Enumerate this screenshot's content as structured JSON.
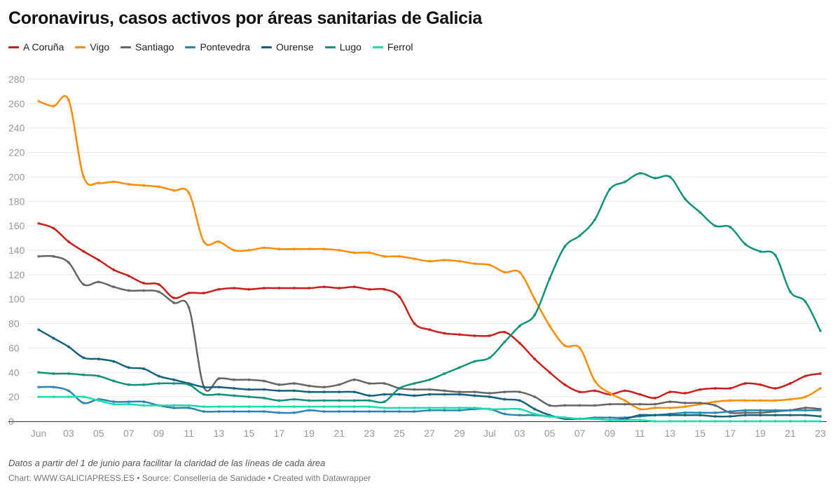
{
  "chart_data": {
    "type": "line",
    "title": "Coronavirus, casos activos por áreas sanitarias de Galicia",
    "note": "Datos a partir del 1 de junio para facilitar la claridad de las líneas de cada área",
    "credit": "Chart: WWW.GALICIAPRESS.ES • Source: Consellería de Sanidade • Created with Datawrapper",
    "x_start": "2020-06-01",
    "x_end": "2020-07-23",
    "x_tick_labels": [
      "Jun",
      "03",
      "05",
      "07",
      "09",
      "11",
      "13",
      "15",
      "17",
      "19",
      "21",
      "23",
      "25",
      "27",
      "29",
      "Jul",
      "03",
      "05",
      "07",
      "09",
      "11",
      "13",
      "15",
      "17",
      "19",
      "21",
      "23"
    ],
    "ylim": [
      0,
      280
    ],
    "y_ticks": [
      0,
      20,
      40,
      60,
      80,
      100,
      120,
      140,
      160,
      180,
      200,
      220,
      240,
      260,
      280
    ],
    "grid": "y-only",
    "legend_position": "top-left",
    "series": [
      {
        "name": "A Coruña",
        "color": "#c71e1d",
        "values": [
          162,
          158,
          147,
          139,
          132,
          124,
          119,
          113,
          112,
          101,
          105,
          105,
          108,
          109,
          108,
          109,
          109,
          109,
          109,
          110,
          109,
          110,
          108,
          108,
          102,
          80,
          75,
          72,
          71,
          70,
          70,
          73,
          64,
          51,
          40,
          30,
          24,
          25,
          22,
          25,
          22,
          19,
          24,
          23,
          26,
          27,
          27,
          31,
          30,
          27,
          31,
          37,
          39
        ]
      },
      {
        "name": "Vigo",
        "color": "#fa8c00",
        "values": [
          262,
          258,
          263,
          200,
          195,
          196,
          194,
          193,
          192,
          189,
          187,
          147,
          147,
          140,
          140,
          142,
          141,
          141,
          141,
          141,
          140,
          138,
          138,
          135,
          135,
          133,
          131,
          132,
          131,
          129,
          128,
          122,
          122,
          100,
          78,
          62,
          60,
          33,
          23,
          17,
          10,
          11,
          11,
          12,
          14,
          16,
          17,
          17,
          17,
          17,
          18,
          20,
          27
        ]
      },
      {
        "name": "Santiago",
        "color": "#656565",
        "values": [
          135,
          135,
          130,
          112,
          114,
          110,
          107,
          107,
          106,
          97,
          93,
          28,
          35,
          34,
          34,
          33,
          30,
          31,
          29,
          28,
          30,
          34,
          31,
          31,
          27,
          26,
          26,
          25,
          24,
          24,
          23,
          24,
          24,
          20,
          13,
          13,
          13,
          13,
          14,
          14,
          14,
          14,
          16,
          15,
          15,
          13,
          7,
          7,
          7,
          8,
          9,
          11,
          10
        ]
      },
      {
        "name": "Pontevedra",
        "color": "#2a84b3",
        "values": [
          28,
          28,
          25,
          15,
          18,
          16,
          16,
          16,
          13,
          11,
          11,
          8,
          8,
          8,
          8,
          8,
          7,
          7,
          9,
          8,
          8,
          8,
          8,
          8,
          8,
          8,
          9,
          9,
          9,
          10,
          10,
          6,
          5,
          5,
          4,
          3,
          2,
          3,
          3,
          3,
          4,
          5,
          6,
          7,
          7,
          7,
          8,
          9,
          9,
          9,
          9,
          9,
          9
        ]
      },
      {
        "name": "Ourense",
        "color": "#15607a",
        "values": [
          75,
          68,
          61,
          52,
          51,
          49,
          44,
          43,
          37,
          34,
          31,
          28,
          28,
          27,
          26,
          26,
          25,
          25,
          24,
          24,
          24,
          24,
          21,
          22,
          22,
          21,
          22,
          22,
          22,
          21,
          20,
          18,
          17,
          10,
          5,
          2,
          2,
          2,
          1,
          2,
          5,
          5,
          5,
          5,
          5,
          4,
          4,
          5,
          5,
          5,
          5,
          5,
          4
        ]
      },
      {
        "name": "Lugo",
        "color": "#0e9277",
        "values": [
          40,
          39,
          39,
          38,
          37,
          33,
          30,
          30,
          31,
          31,
          30,
          22,
          22,
          21,
          20,
          19,
          17,
          18,
          17,
          17,
          17,
          17,
          17,
          16,
          27,
          31,
          34,
          39,
          44,
          49,
          52,
          65,
          78,
          87,
          117,
          143,
          152,
          165,
          190,
          196,
          203,
          199,
          200,
          182,
          171,
          160,
          159,
          145,
          139,
          136,
          106,
          98,
          74
        ]
      },
      {
        "name": "Ferrol",
        "color": "#1ddcab",
        "values": [
          20,
          20,
          20,
          20,
          17,
          14,
          14,
          13,
          13,
          13,
          13,
          12,
          12,
          12,
          12,
          12,
          12,
          12,
          12,
          12,
          12,
          12,
          12,
          11,
          11,
          11,
          11,
          11,
          11,
          11,
          10,
          10,
          10,
          6,
          4,
          3,
          2,
          2,
          1,
          1,
          1,
          0,
          0,
          0,
          0,
          0,
          0,
          0,
          0,
          0,
          0,
          0,
          0
        ]
      }
    ]
  }
}
